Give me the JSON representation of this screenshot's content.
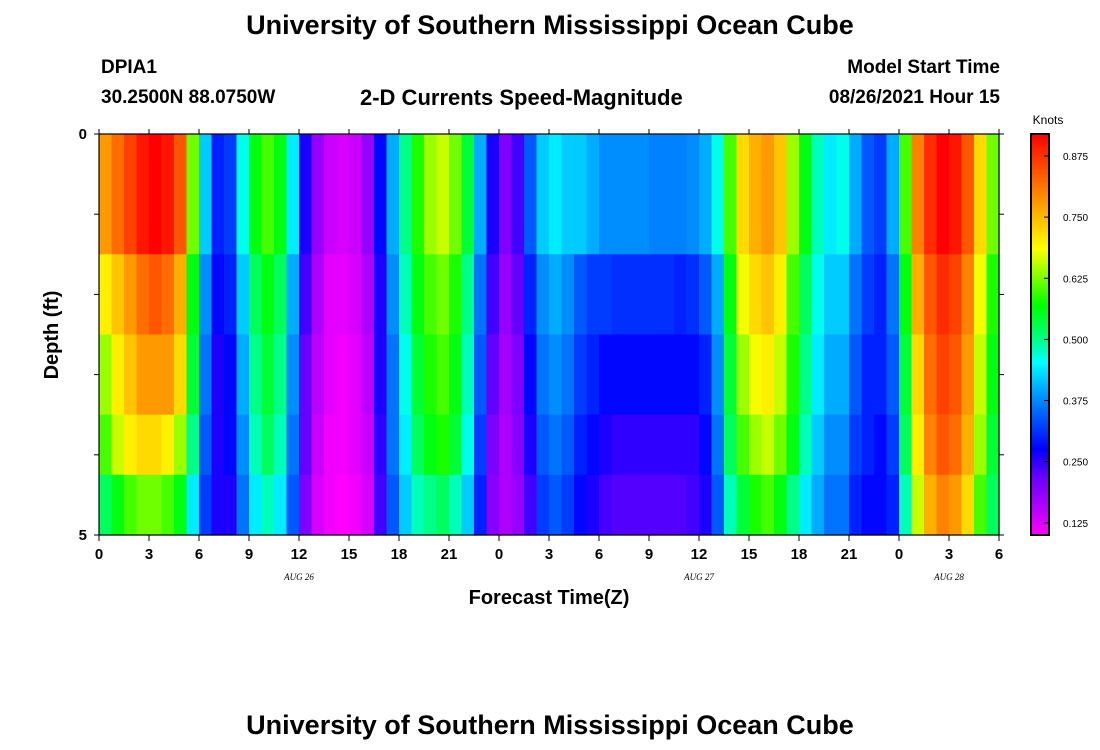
{
  "header": {
    "title": "University of Southern Mississippi Ocean Cube",
    "station": "DPIA1",
    "coords": "30.2500N  88.0750W",
    "product": "2-D Currents Speed-Magnitude",
    "model_start_label": "Model Start Time",
    "model_start_value": "08/26/2021 Hour 15"
  },
  "footer": {
    "title": "University of Southern Mississippi Ocean Cube"
  },
  "chart_data": {
    "type": "heatmap",
    "xlabel": "Forecast Time(Z)",
    "ylabel": "Depth (ft)",
    "colorbar_label": "Knots",
    "x_range": [
      0,
      54
    ],
    "y_range": [
      0,
      5
    ],
    "y_ticks": [
      "0",
      "5"
    ],
    "x_ticks": [
      "0",
      "3",
      "6",
      "9",
      "12",
      "15",
      "18",
      "21",
      "0",
      "3",
      "6",
      "9",
      "12",
      "15",
      "18",
      "21",
      "0",
      "3",
      "6"
    ],
    "date_labels": [
      {
        "text": "AUG  26",
        "hour": 12
      },
      {
        "text": "AUG  27",
        "hour": 36
      },
      {
        "text": "AUG  28",
        "hour": 51
      }
    ],
    "colorbar": {
      "ticks": [
        "0.875",
        "0.750",
        "0.625",
        "0.500",
        "0.375",
        "0.250",
        "0.125"
      ],
      "tick_values": [
        0.875,
        0.75,
        0.625,
        0.5,
        0.375,
        0.25,
        0.125
      ],
      "min": 0.1,
      "max": 0.92,
      "colors": [
        "#ff00ff",
        "#b000ff",
        "#6a00ff",
        "#0000ff",
        "#0050ff",
        "#00a0ff",
        "#00ffff",
        "#00ff70",
        "#00ff00",
        "#80ff00",
        "#ffff00",
        "#ffc000",
        "#ff8000",
        "#ff4000",
        "#ff0000"
      ]
    },
    "depth_rows": [
      0,
      1,
      2,
      3,
      4
    ],
    "columns": [
      [
        0.78,
        0.7,
        0.64,
        0.6,
        0.52
      ],
      [
        0.82,
        0.74,
        0.7,
        0.66,
        0.56
      ],
      [
        0.86,
        0.78,
        0.74,
        0.7,
        0.6
      ],
      [
        0.9,
        0.82,
        0.78,
        0.72,
        0.62
      ],
      [
        0.92,
        0.84,
        0.78,
        0.72,
        0.62
      ],
      [
        0.9,
        0.82,
        0.78,
        0.7,
        0.6
      ],
      [
        0.84,
        0.76,
        0.72,
        0.64,
        0.56
      ],
      [
        0.62,
        0.56,
        0.54,
        0.5,
        0.44
      ],
      [
        0.42,
        0.38,
        0.36,
        0.34,
        0.32
      ],
      [
        0.3,
        0.28,
        0.26,
        0.26,
        0.26
      ],
      [
        0.32,
        0.3,
        0.28,
        0.28,
        0.26
      ],
      [
        0.46,
        0.42,
        0.4,
        0.38,
        0.36
      ],
      [
        0.56,
        0.52,
        0.5,
        0.48,
        0.44
      ],
      [
        0.6,
        0.56,
        0.54,
        0.52,
        0.48
      ],
      [
        0.56,
        0.52,
        0.5,
        0.48,
        0.44
      ],
      [
        0.44,
        0.4,
        0.38,
        0.36,
        0.34
      ],
      [
        0.26,
        0.24,
        0.22,
        0.22,
        0.2
      ],
      [
        0.18,
        0.16,
        0.15,
        0.14,
        0.13
      ],
      [
        0.14,
        0.12,
        0.12,
        0.11,
        0.11
      ],
      [
        0.13,
        0.12,
        0.11,
        0.11,
        0.1
      ],
      [
        0.14,
        0.13,
        0.12,
        0.12,
        0.11
      ],
      [
        0.18,
        0.16,
        0.15,
        0.14,
        0.13
      ],
      [
        0.28,
        0.26,
        0.26,
        0.25,
        0.24
      ],
      [
        0.4,
        0.38,
        0.36,
        0.36,
        0.34
      ],
      [
        0.5,
        0.48,
        0.46,
        0.44,
        0.42
      ],
      [
        0.58,
        0.56,
        0.54,
        0.52,
        0.48
      ],
      [
        0.64,
        0.6,
        0.58,
        0.56,
        0.5
      ],
      [
        0.66,
        0.62,
        0.6,
        0.58,
        0.52
      ],
      [
        0.62,
        0.58,
        0.56,
        0.54,
        0.48
      ],
      [
        0.54,
        0.5,
        0.48,
        0.46,
        0.42
      ],
      [
        0.4,
        0.36,
        0.34,
        0.32,
        0.3
      ],
      [
        0.26,
        0.24,
        0.22,
        0.2,
        0.19
      ],
      [
        0.2,
        0.18,
        0.17,
        0.16,
        0.16
      ],
      [
        0.24,
        0.22,
        0.2,
        0.19,
        0.18
      ],
      [
        0.34,
        0.3,
        0.28,
        0.26,
        0.24
      ],
      [
        0.42,
        0.38,
        0.36,
        0.34,
        0.32
      ],
      [
        0.44,
        0.4,
        0.38,
        0.36,
        0.34
      ],
      [
        0.42,
        0.38,
        0.36,
        0.34,
        0.32
      ],
      [
        0.42,
        0.34,
        0.32,
        0.3,
        0.28
      ],
      [
        0.4,
        0.32,
        0.3,
        0.28,
        0.26
      ],
      [
        0.38,
        0.32,
        0.28,
        0.26,
        0.24
      ],
      [
        0.38,
        0.31,
        0.28,
        0.25,
        0.23
      ],
      [
        0.38,
        0.31,
        0.28,
        0.25,
        0.23
      ],
      [
        0.38,
        0.31,
        0.28,
        0.25,
        0.23
      ],
      [
        0.37,
        0.31,
        0.28,
        0.25,
        0.23
      ],
      [
        0.37,
        0.31,
        0.28,
        0.25,
        0.23
      ],
      [
        0.37,
        0.3,
        0.28,
        0.25,
        0.23
      ],
      [
        0.38,
        0.31,
        0.28,
        0.25,
        0.24
      ],
      [
        0.4,
        0.34,
        0.3,
        0.28,
        0.26
      ],
      [
        0.46,
        0.4,
        0.38,
        0.36,
        0.34
      ],
      [
        0.6,
        0.56,
        0.54,
        0.52,
        0.48
      ],
      [
        0.72,
        0.68,
        0.64,
        0.6,
        0.54
      ],
      [
        0.76,
        0.72,
        0.68,
        0.64,
        0.58
      ],
      [
        0.78,
        0.74,
        0.7,
        0.66,
        0.6
      ],
      [
        0.74,
        0.7,
        0.66,
        0.62,
        0.56
      ],
      [
        0.64,
        0.6,
        0.58,
        0.56,
        0.5
      ],
      [
        0.56,
        0.52,
        0.5,
        0.48,
        0.44
      ],
      [
        0.48,
        0.46,
        0.44,
        0.42,
        0.4
      ],
      [
        0.44,
        0.42,
        0.4,
        0.38,
        0.36
      ],
      [
        0.46,
        0.42,
        0.4,
        0.38,
        0.36
      ],
      [
        0.4,
        0.36,
        0.34,
        0.32,
        0.3
      ],
      [
        0.34,
        0.32,
        0.3,
        0.3,
        0.28
      ],
      [
        0.32,
        0.3,
        0.3,
        0.28,
        0.28
      ],
      [
        0.4,
        0.36,
        0.34,
        0.32,
        0.3
      ],
      [
        0.6,
        0.56,
        0.54,
        0.52,
        0.48
      ],
      [
        0.8,
        0.76,
        0.72,
        0.7,
        0.66
      ],
      [
        0.88,
        0.84,
        0.82,
        0.8,
        0.76
      ],
      [
        0.92,
        0.88,
        0.86,
        0.84,
        0.8
      ],
      [
        0.9,
        0.86,
        0.84,
        0.82,
        0.78
      ],
      [
        0.84,
        0.8,
        0.78,
        0.76,
        0.72
      ],
      [
        0.72,
        0.68,
        0.66,
        0.64,
        0.6
      ],
      [
        0.62,
        0.58,
        0.56,
        0.54,
        0.52
      ]
    ]
  }
}
